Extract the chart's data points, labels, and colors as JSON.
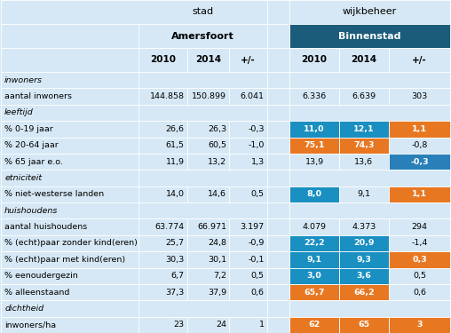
{
  "bg_color": "#d6e8f5",
  "header_dark_color": "#1a5c7a",
  "blue_cell": "#1a8fc1",
  "orange_cell": "#e87722",
  "neg_blue_cell": "#2980b9",
  "rows": [
    {
      "label": "inwoners",
      "italic": true,
      "section": true,
      "values": [
        "",
        "",
        "",
        "",
        "",
        ""
      ],
      "colored": [
        false,
        false,
        false,
        false,
        false,
        false
      ]
    },
    {
      "label": "aantal inwoners",
      "italic": false,
      "section": false,
      "values": [
        "144.858",
        "150.899",
        "6.041",
        "6.336",
        "6.639",
        "303"
      ],
      "colored": [
        false,
        false,
        false,
        false,
        false,
        false
      ]
    },
    {
      "label": "leeftijd",
      "italic": true,
      "section": true,
      "values": [
        "",
        "",
        "",
        "",
        "",
        ""
      ],
      "colored": [
        false,
        false,
        false,
        false,
        false,
        false
      ]
    },
    {
      "label": "% 0-19 jaar",
      "italic": false,
      "section": false,
      "values": [
        "26,6",
        "26,3",
        "-0,3",
        "11,0",
        "12,1",
        "1,1"
      ],
      "colored": [
        false,
        false,
        false,
        "blue",
        "blue",
        "orange"
      ]
    },
    {
      "label": "% 20-64 jaar",
      "italic": false,
      "section": false,
      "values": [
        "61,5",
        "60,5",
        "-1,0",
        "75,1",
        "74,3",
        "-0,8"
      ],
      "colored": [
        false,
        false,
        false,
        "orange",
        "orange",
        false
      ]
    },
    {
      "label": "% 65 jaar e.o.",
      "italic": false,
      "section": false,
      "values": [
        "11,9",
        "13,2",
        "1,3",
        "13,9",
        "13,6",
        "-0,3"
      ],
      "colored": [
        false,
        false,
        false,
        false,
        false,
        "neg_blue"
      ]
    },
    {
      "label": "etniciteit",
      "italic": true,
      "section": true,
      "values": [
        "",
        "",
        "",
        "",
        "",
        ""
      ],
      "colored": [
        false,
        false,
        false,
        false,
        false,
        false
      ]
    },
    {
      "label": "% niet-westerse landen",
      "italic": false,
      "section": false,
      "values": [
        "14,0",
        "14,6",
        "0,5",
        "8,0",
        "9,1",
        "1,1"
      ],
      "colored": [
        false,
        false,
        false,
        "blue",
        false,
        "orange"
      ]
    },
    {
      "label": "huishoudens",
      "italic": true,
      "section": true,
      "values": [
        "",
        "",
        "",
        "",
        "",
        ""
      ],
      "colored": [
        false,
        false,
        false,
        false,
        false,
        false
      ]
    },
    {
      "label": "aantal huishoudens",
      "italic": false,
      "section": false,
      "values": [
        "63.774",
        "66.971",
        "3.197",
        "4.079",
        "4.373",
        "294"
      ],
      "colored": [
        false,
        false,
        false,
        false,
        false,
        false
      ]
    },
    {
      "label": "% (echt)paar zonder kind(eren)",
      "italic": false,
      "section": false,
      "values": [
        "25,7",
        "24,8",
        "-0,9",
        "22,2",
        "20,9",
        "-1,4"
      ],
      "colored": [
        false,
        false,
        false,
        "blue",
        "blue",
        false
      ]
    },
    {
      "label": "% (echt)paar met kind(eren)",
      "italic": false,
      "section": false,
      "values": [
        "30,3",
        "30,1",
        "-0,1",
        "9,1",
        "9,3",
        "0,3"
      ],
      "colored": [
        false,
        false,
        false,
        "blue",
        "blue",
        "orange"
      ]
    },
    {
      "label": "% eenoudergezin",
      "italic": false,
      "section": false,
      "values": [
        "6,7",
        "7,2",
        "0,5",
        "3,0",
        "3,6",
        "0,5"
      ],
      "colored": [
        false,
        false,
        false,
        "blue",
        "blue",
        false
      ]
    },
    {
      "label": "% alleenstaand",
      "italic": false,
      "section": false,
      "values": [
        "37,3",
        "37,9",
        "0,6",
        "65,7",
        "66,2",
        "0,6"
      ],
      "colored": [
        false,
        false,
        false,
        "orange",
        "orange",
        false
      ]
    },
    {
      "label": "dichtheid",
      "italic": true,
      "section": true,
      "values": [
        "",
        "",
        "",
        "",
        "",
        ""
      ],
      "colored": [
        false,
        false,
        false,
        false,
        false,
        false
      ]
    },
    {
      "label": "inwoners/ha",
      "italic": false,
      "section": false,
      "values": [
        "23",
        "24",
        "1",
        "62",
        "65",
        "3"
      ],
      "colored": [
        false,
        false,
        false,
        "orange",
        "orange",
        "orange"
      ]
    }
  ],
  "fig_width": 5.08,
  "fig_height": 3.75,
  "dpi": 100
}
